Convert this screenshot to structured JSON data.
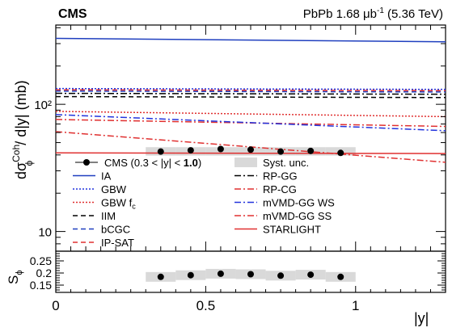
{
  "chart_data": {
    "type": "line",
    "header": {
      "experiment": "CMS",
      "dataset_prefix": "PbPb 1.68 ",
      "dataset_unit": "μb",
      "dataset_exp": "-1",
      "dataset_suffix": " (5.36 TeV)"
    },
    "top_panel": {
      "ylabel_parts": {
        "d1": "dσ",
        "sup": "Coh.",
        "sub": "ϕ",
        "rest": " / d|y| (mb)"
      },
      "yscale": "log",
      "ylim": [
        7,
        420
      ],
      "yticks": [
        {
          "v": 10,
          "label": "10"
        },
        {
          "v": 100,
          "label": "10²"
        }
      ],
      "legend_position": "lower-left, two columns",
      "data": {
        "name_prefix": "CMS (0.3 < |y| < ",
        "name_bold": "1.0",
        "name_suffix": ")",
        "syst_name": "Syst. unc.",
        "points": [
          {
            "x": 0.35,
            "y": 42.5
          },
          {
            "x": 0.45,
            "y": 43.5
          },
          {
            "x": 0.55,
            "y": 44.5
          },
          {
            "x": 0.65,
            "y": 44.0
          },
          {
            "x": 0.75,
            "y": 42.5
          },
          {
            "x": 0.85,
            "y": 43.0
          },
          {
            "x": 0.95,
            "y": 41.5
          }
        ],
        "syst_band": {
          "lo": 39.5,
          "hi": 46.0
        }
      },
      "models": [
        {
          "name": "IA",
          "color": "#1f3fbf",
          "style": "solid",
          "y0": 330,
          "y1": 310
        },
        {
          "name": "GBW",
          "color": "#2233dd",
          "style": "dotted",
          "y0": 133,
          "y1": 131
        },
        {
          "name": "GBW f",
          "sub": "c",
          "color": "#e03030",
          "style": "dotted",
          "y0": 88,
          "y1": 80
        },
        {
          "name": "IIM",
          "color": "#000000",
          "style": "dashed",
          "y0": 115,
          "y1": 113
        },
        {
          "name": "bCGC",
          "color": "#1f3fbf",
          "style": "dashed",
          "y0": 127,
          "y1": 125
        },
        {
          "name": "IP-SAT",
          "color": "#e03030",
          "style": "dashed",
          "y0": 130,
          "y1": 128
        },
        {
          "name": "RP-GG",
          "color": "#000000",
          "style": "dashdot",
          "y0": 122,
          "y1": 120
        },
        {
          "name": "RP-CG",
          "color": "#e03030",
          "style": "dashdot",
          "y0": 76,
          "y1": 67
        },
        {
          "name": "mVMD-GG WS",
          "color": "#2233dd",
          "style": "dashdot",
          "y0": 83,
          "y1": 62
        },
        {
          "name": "mVMD-GG SS",
          "color": "#e03030",
          "style": "dashdot",
          "y0": 61,
          "y1": 35
        },
        {
          "name": "STARLIGHT",
          "color": "#e03030",
          "style": "solid",
          "y0": 41.5,
          "y1": 41.0
        }
      ]
    },
    "bottom_panel": {
      "ylabel": "S",
      "ylabel_sub": "ϕ",
      "ylim": [
        0.12,
        0.29
      ],
      "yticks": [
        0.15,
        0.2,
        0.25
      ],
      "ytick_labels": [
        "0.15",
        "0.2",
        "0.25"
      ],
      "points": [
        {
          "x": 0.35,
          "y": 0.184
        },
        {
          "x": 0.45,
          "y": 0.191
        },
        {
          "x": 0.55,
          "y": 0.197
        },
        {
          "x": 0.65,
          "y": 0.195
        },
        {
          "x": 0.75,
          "y": 0.189
        },
        {
          "x": 0.85,
          "y": 0.193
        },
        {
          "x": 0.95,
          "y": 0.184
        }
      ],
      "syst_half_width": 0.02
    },
    "x": {
      "label": "|y|",
      "xlim": [
        0,
        1.3
      ],
      "ticks": [
        0,
        0.5,
        1
      ],
      "tick_labels": [
        "0",
        "0.5",
        "1"
      ]
    }
  }
}
